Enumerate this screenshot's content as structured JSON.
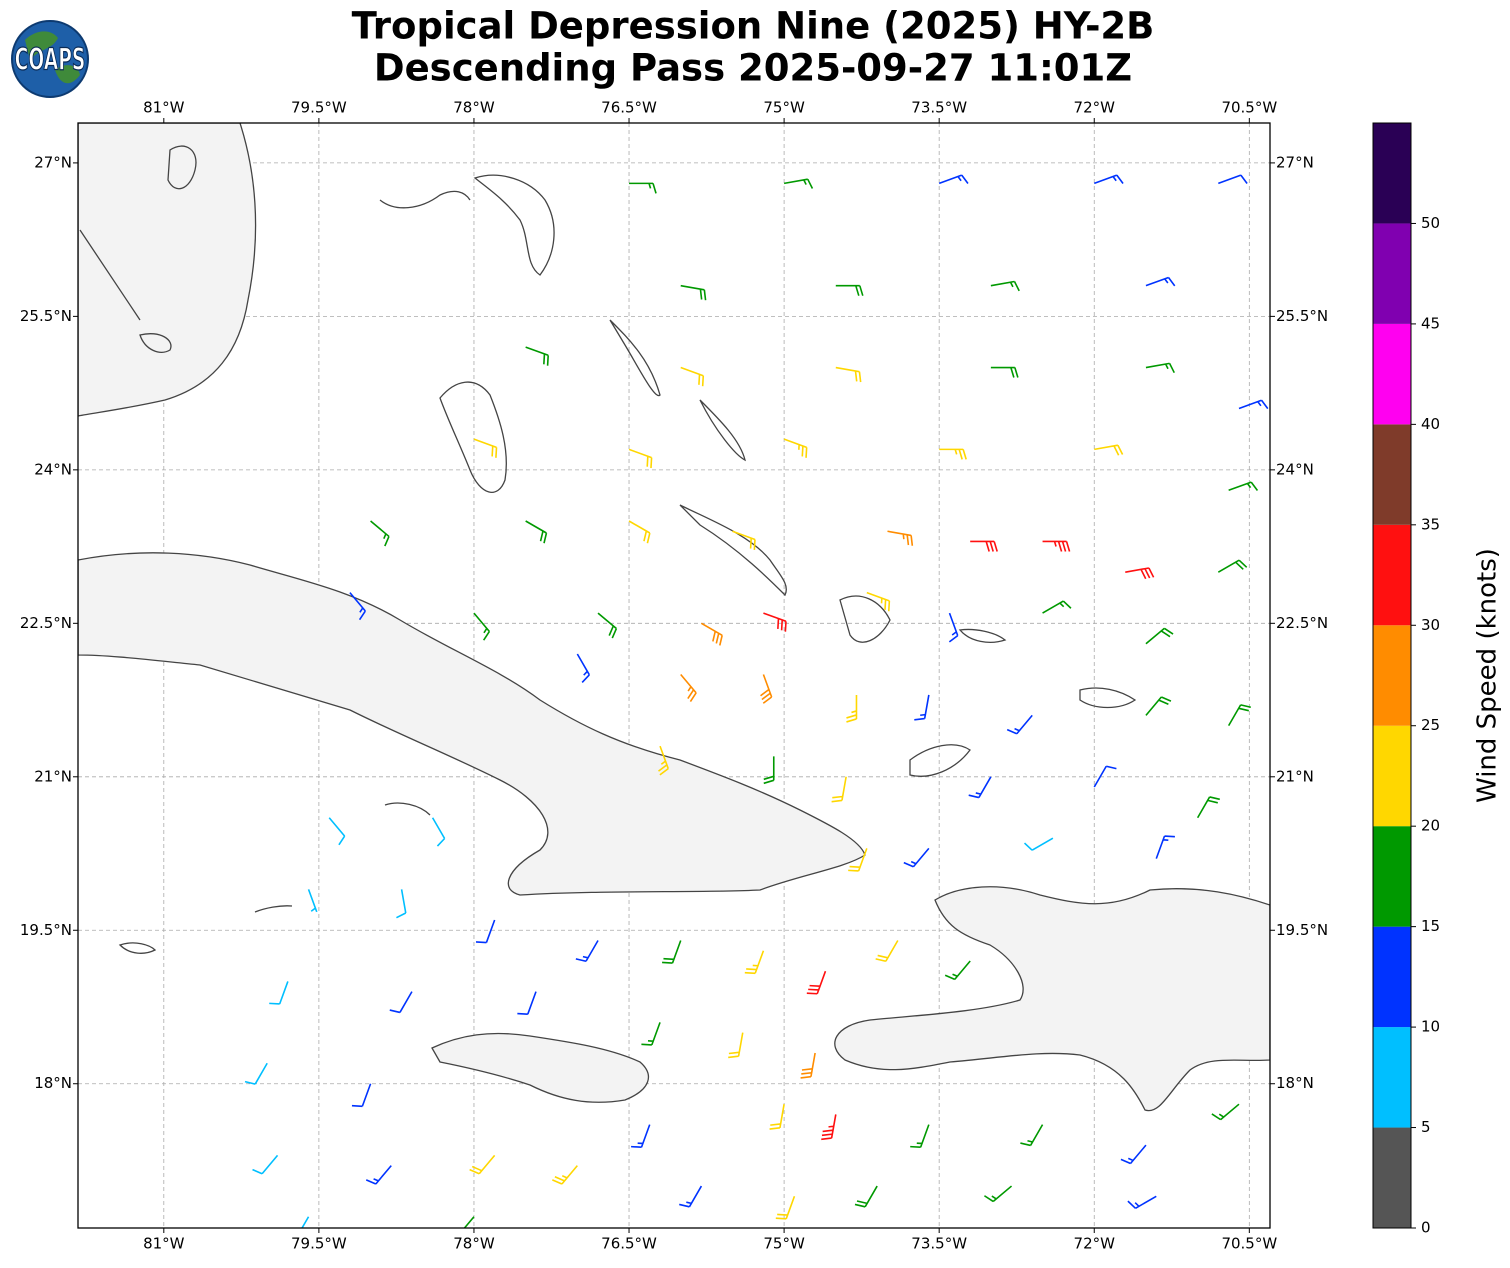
{
  "logo_text": "COAPS",
  "chart_data": {
    "type": "wind_barbs",
    "title": "Tropical Depression Nine (2025) HY-2B",
    "subtitle": "Descending Pass 2025-09-27 11:01Z",
    "xlim": [
      -81.83,
      -70.3
    ],
    "ylim": [
      16.59,
      27.39
    ],
    "xticks": [
      {
        "value": -81,
        "label": "81°W"
      },
      {
        "value": -79.5,
        "label": "79.5°W"
      },
      {
        "value": -78,
        "label": "78°W"
      },
      {
        "value": -76.5,
        "label": "76.5°W"
      },
      {
        "value": -75,
        "label": "75°W"
      },
      {
        "value": -73.5,
        "label": "73.5°W"
      },
      {
        "value": -72,
        "label": "72°W"
      },
      {
        "value": -70.5,
        "label": "70.5°W"
      }
    ],
    "yticks": [
      {
        "value": 18,
        "label": "18°N"
      },
      {
        "value": 19.5,
        "label": "19.5°N"
      },
      {
        "value": 21,
        "label": "21°N"
      },
      {
        "value": 22.5,
        "label": "22.5°N"
      },
      {
        "value": 24,
        "label": "24°N"
      },
      {
        "value": 25.5,
        "label": "25.5°N"
      },
      {
        "value": 27,
        "label": "27°N"
      }
    ],
    "grid": true,
    "colorbar": {
      "label": "Wind Speed (knots)",
      "bounds": [
        0,
        5,
        10,
        15,
        20,
        25,
        30,
        35,
        40,
        45,
        50,
        55
      ],
      "colors": [
        "#555555",
        "#00bfff",
        "#0033ff",
        "#009900",
        "#ffd700",
        "#ff8c00",
        "#ff1010",
        "#7f3b2a",
        "#ff00f0",
        "#8000b0",
        "#2a0055"
      ],
      "ticks": [
        0,
        5,
        10,
        15,
        20,
        25,
        30,
        35,
        40,
        45,
        50
      ]
    },
    "barbs": {
      "lon": [
        -76.5,
        -75,
        -73.5,
        -72,
        -70.8,
        -76,
        -74.5,
        -73,
        -71.5,
        -77.5,
        -76,
        -74.5,
        -73,
        -71.5,
        -70.6,
        -78,
        -76.5,
        -75,
        -73.5,
        -72,
        -70.7,
        -79,
        -77.5,
        -76.5,
        -75.5,
        -74,
        -73.2,
        -72.5,
        -71.7,
        -70.8,
        -79.2,
        -78,
        -76.8,
        -75.8,
        -75.2,
        -74.2,
        -73.4,
        -72.5,
        -71.5,
        -77,
        -76,
        -75.2,
        -74.3,
        -73.6,
        -72.6,
        -71.5,
        -70.7,
        -76.2,
        -75.1,
        -74.4,
        -73,
        -72,
        -71,
        -74.2,
        -73.6,
        -72.4,
        -71.4,
        -79.4,
        -78.4,
        -79.6,
        -78.7,
        -77.8,
        -76.8,
        -76,
        -75.2,
        -74.6,
        -73.9,
        -73.2,
        -79.8,
        -78.6,
        -77.4,
        -76.2,
        -75.4,
        -74.7,
        -80,
        -79,
        -76.3,
        -75,
        -74.5,
        -73.6,
        -72.5,
        -71.5,
        -70.6,
        -79.9,
        -78.8,
        -77.8,
        -77,
        -75.8,
        -74.9,
        -74.1,
        -72.8,
        -71.4,
        -78,
        -79.6
      ],
      "lat": [
        26.8,
        26.8,
        26.8,
        26.8,
        26.8,
        25.8,
        25.8,
        25.8,
        25.8,
        25.2,
        25,
        25,
        25,
        25,
        24.6,
        24.3,
        24.2,
        24.3,
        24.2,
        24.2,
        23.8,
        23.5,
        23.5,
        23.5,
        23.4,
        23.4,
        23.3,
        23.3,
        23,
        23,
        22.8,
        22.6,
        22.6,
        22.5,
        22.6,
        22.8,
        22.6,
        22.6,
        22.3,
        22.2,
        22,
        22,
        21.8,
        21.8,
        21.6,
        21.6,
        21.5,
        21.3,
        21.2,
        21,
        21,
        20.9,
        20.6,
        20.3,
        20.3,
        20.4,
        20.2,
        20.6,
        20.6,
        19.9,
        19.9,
        19.6,
        19.4,
        19.4,
        19.3,
        19.1,
        19.4,
        19.2,
        19,
        18.9,
        18.9,
        18.6,
        18.5,
        18.3,
        18.2,
        18,
        17.6,
        17.8,
        17.7,
        17.6,
        17.6,
        17.4,
        17.8,
        17.3,
        17.2,
        17.3,
        17.2,
        17,
        16.9,
        17,
        17,
        16.9,
        16.7,
        16.7
      ],
      "speed": [
        16,
        17,
        14,
        13,
        12,
        18,
        19,
        16,
        14,
        18,
        22,
        21,
        18,
        16,
        14,
        21,
        22,
        23,
        24,
        21,
        17,
        17,
        18,
        22,
        22,
        27,
        32,
        33,
        31,
        19,
        14,
        16,
        18,
        28,
        31,
        24,
        14,
        17,
        18,
        13,
        26,
        28,
        23,
        13,
        14,
        19,
        19,
        24,
        18,
        22,
        14,
        12,
        18,
        21,
        13,
        8,
        13,
        8,
        8,
        7,
        8,
        12,
        13,
        19,
        23,
        32,
        20,
        16,
        9,
        12,
        12,
        15,
        22,
        28,
        9,
        12,
        13,
        22,
        33,
        17,
        17,
        13,
        16,
        8,
        14,
        22,
        23,
        14,
        21,
        19,
        15,
        13,
        17,
        9
      ],
      "direction": [
        90,
        80,
        70,
        70,
        70,
        100,
        90,
        80,
        70,
        110,
        110,
        100,
        90,
        80,
        70,
        110,
        110,
        110,
        90,
        80,
        70,
        130,
        120,
        120,
        110,
        100,
        90,
        90,
        80,
        60,
        140,
        140,
        130,
        120,
        110,
        110,
        160,
        60,
        50,
        150,
        140,
        160,
        180,
        190,
        220,
        40,
        30,
        160,
        180,
        190,
        210,
        30,
        30,
        200,
        220,
        240,
        20,
        140,
        150,
        160,
        170,
        200,
        210,
        200,
        200,
        200,
        210,
        220,
        200,
        210,
        200,
        200,
        190,
        190,
        210,
        200,
        200,
        190,
        190,
        200,
        210,
        220,
        230,
        220,
        220,
        220,
        220,
        210,
        200,
        210,
        230,
        240,
        220,
        210
      ]
    }
  }
}
